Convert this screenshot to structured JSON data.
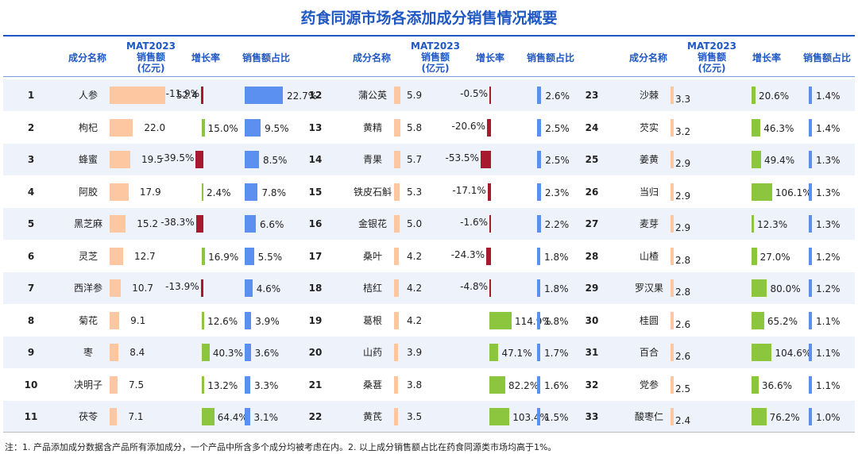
{
  "title": "药食同源市场各添加成分销售情况概要",
  "headers": {
    "name": "成分名称",
    "sales": [
      "MAT2023",
      "销售额",
      "(亿元)"
    ],
    "growth": "增长率",
    "share": "销售额占比"
  },
  "colors": {
    "sales_bar": "#fcc7a1",
    "growth_positive": "#8cc63f",
    "growth_negative": "#a6192e",
    "share_bar": "#5b8ff0",
    "header_text": "#1f57c3",
    "stripe": "#eef2fa"
  },
  "chart_data": {
    "type": "table",
    "columns": [
      "rank",
      "ingredient",
      "sales_mat2023_100m_yuan",
      "growth_rate_pct",
      "sales_share_pct"
    ],
    "rows": [
      [
        1,
        "人参",
        52.4,
        -11.9,
        22.7
      ],
      [
        2,
        "枸杞",
        22.0,
        15.0,
        9.5
      ],
      [
        3,
        "蜂蜜",
        19.5,
        -39.5,
        8.5
      ],
      [
        4,
        "阿胶",
        17.9,
        2.4,
        7.8
      ],
      [
        5,
        "黑芝麻",
        15.2,
        -38.3,
        6.6
      ],
      [
        6,
        "灵芝",
        12.7,
        16.9,
        5.5
      ],
      [
        7,
        "西洋参",
        10.7,
        -13.9,
        4.6
      ],
      [
        8,
        "菊花",
        9.1,
        12.6,
        3.9
      ],
      [
        9,
        "枣",
        8.4,
        40.3,
        3.6
      ],
      [
        10,
        "决明子",
        7.5,
        13.2,
        3.3
      ],
      [
        11,
        "茯苓",
        7.1,
        64.4,
        3.1
      ],
      [
        12,
        "蒲公英",
        5.9,
        -0.5,
        2.6
      ],
      [
        13,
        "黄精",
        5.8,
        -20.6,
        2.5
      ],
      [
        14,
        "青果",
        5.7,
        -53.5,
        2.5
      ],
      [
        15,
        "铁皮石斛",
        5.3,
        -17.1,
        2.3
      ],
      [
        16,
        "金银花",
        5.0,
        -1.6,
        2.2
      ],
      [
        17,
        "桑叶",
        4.2,
        -24.3,
        1.8
      ],
      [
        18,
        "桔红",
        4.2,
        -4.8,
        1.8
      ],
      [
        19,
        "葛根",
        4.2,
        114.9,
        1.8
      ],
      [
        20,
        "山药",
        3.9,
        47.1,
        1.7
      ],
      [
        21,
        "桑葚",
        3.8,
        82.2,
        1.6
      ],
      [
        22,
        "黄芪",
        3.5,
        103.4,
        1.5
      ],
      [
        23,
        "沙棘",
        3.3,
        20.6,
        1.4
      ],
      [
        24,
        "芡实",
        3.2,
        46.3,
        1.4
      ],
      [
        25,
        "姜黄",
        2.9,
        49.4,
        1.3
      ],
      [
        26,
        "当归",
        2.9,
        106.1,
        1.3
      ],
      [
        27,
        "麦芽",
        2.9,
        12.3,
        1.3
      ],
      [
        28,
        "山楂",
        2.8,
        27.0,
        1.2
      ],
      [
        29,
        "罗汉果",
        2.8,
        80.0,
        1.2
      ],
      [
        30,
        "桂圆",
        2.6,
        65.2,
        1.1
      ],
      [
        31,
        "百合",
        2.6,
        104.6,
        1.1
      ],
      [
        32,
        "党参",
        2.5,
        36.6,
        1.1
      ],
      [
        33,
        "酸枣仁",
        2.4,
        76.2,
        1.0
      ]
    ]
  },
  "note": "注：1. 产品添加成分数据含产品所有添加成分，一个产品中所含多个成分均被考虑在内。2. 以上成分销售额占比在药食同源类市场均高于1%。"
}
